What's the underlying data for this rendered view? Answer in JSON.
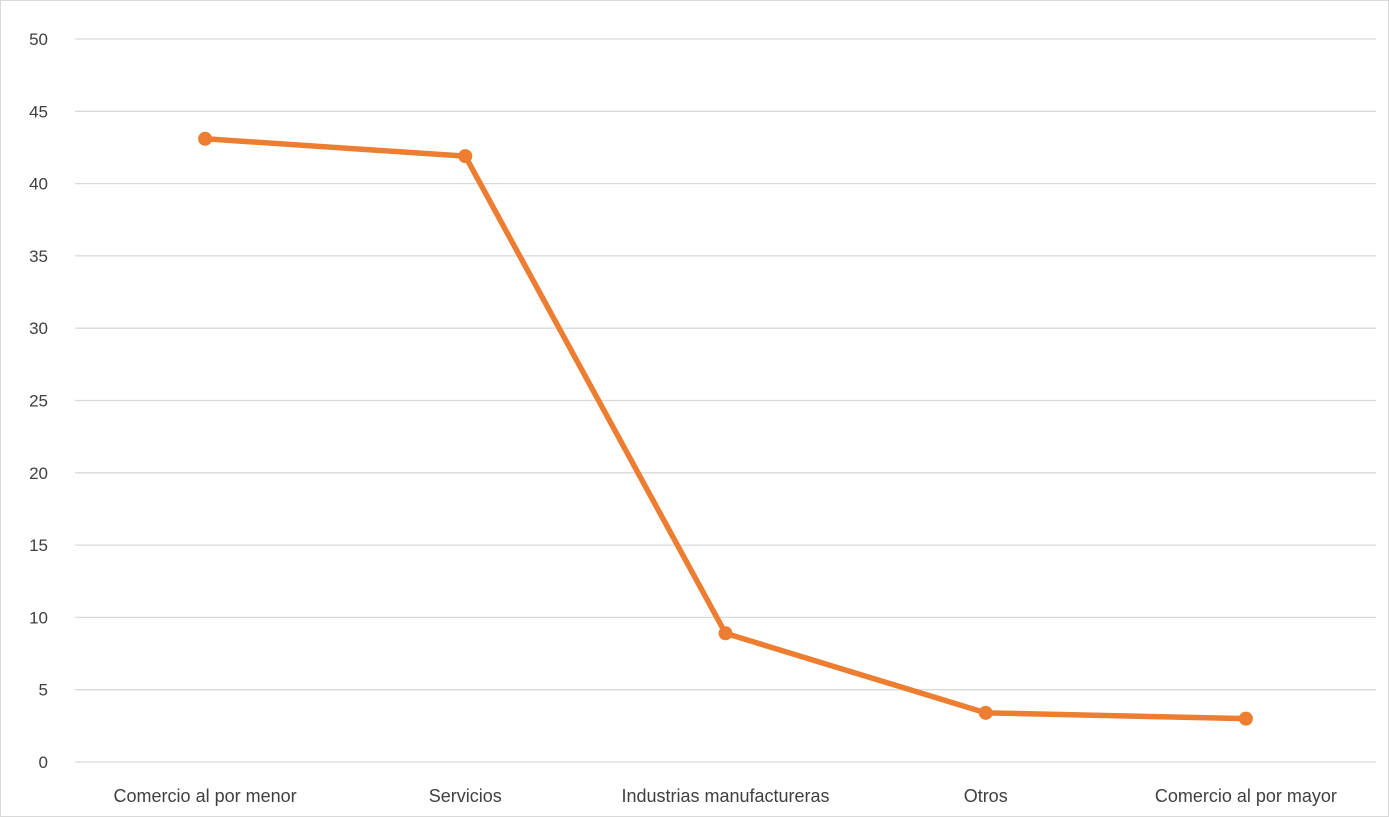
{
  "chart_data": {
    "type": "line",
    "title": "",
    "xlabel": "",
    "ylabel": "",
    "categories": [
      "Comercio al por menor",
      "Servicios",
      "Industrias manufactureras",
      "Otros",
      "Comercio al por mayor"
    ],
    "series": [
      {
        "values": [
          43.1,
          41.9,
          8.9,
          3.4,
          3.0
        ],
        "color": "#ed7d31"
      }
    ],
    "ylim": [
      0,
      50
    ],
    "yticks": [
      "0",
      "5",
      "10",
      "15",
      "20",
      "25",
      "30",
      "35",
      "40",
      "45",
      "50"
    ],
    "grid": true,
    "gridColor": "#d9d9d9",
    "legend": "none"
  }
}
